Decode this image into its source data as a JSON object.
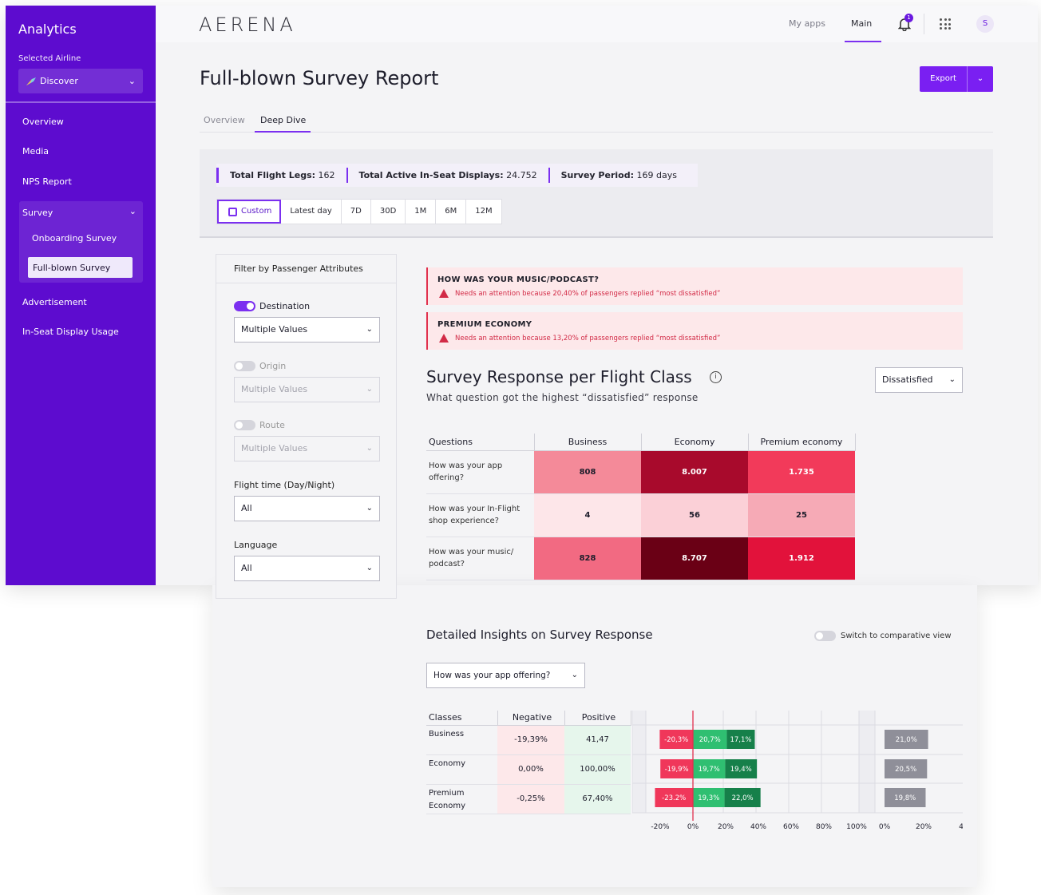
{
  "sidebar": {
    "title": "Analytics",
    "selected_label": "Selected Airline",
    "airline": "Discover",
    "items": [
      "Overview",
      "Media",
      "NPS Report"
    ],
    "survey": "Survey",
    "survey_sub": [
      "Onboarding Survey",
      "Full-blown Survey"
    ],
    "items_after": [
      "Advertisement",
      "In-Seat Display Usage"
    ]
  },
  "topbar": {
    "logo": "AERENA",
    "my_apps": "My apps",
    "main": "Main",
    "notif_count": "1",
    "avatar": "S"
  },
  "page": {
    "title": "Full-blown Survey Report",
    "export": "Export",
    "tabs": [
      "Overview",
      "Deep Dive"
    ]
  },
  "stats": [
    {
      "label": "Total Flight Legs:",
      "value": "162"
    },
    {
      "label": "Total Active In-Seat Displays:",
      "value": "24.752"
    },
    {
      "label": "Survey Period:",
      "value": "169 days"
    }
  ],
  "ranges": [
    "Custom",
    "Latest day",
    "7D",
    "30D",
    "1M",
    "6M",
    "12M"
  ],
  "filter": {
    "title": "Filter by Passenger Attributes",
    "destination": "Destination",
    "destination_value": "Multiple Values",
    "origin": "Origin",
    "origin_value": "Multiple Values",
    "route": "Route",
    "route_value": "Multiple Values",
    "flight_time": "Flight time (Day/Night)",
    "flight_time_value": "All",
    "language": "Language",
    "language_value": "All"
  },
  "alerts": [
    {
      "title": "HOW WAS YOUR MUSIC/PODCAST?",
      "message": "Needs an attention because 20,40% of passengers replied “most dissatisfied”"
    },
    {
      "title": "PREMIUM ECONOMY",
      "message": "Needs an attention because 13,20% of passengers replied “most dissatisfied”"
    }
  ],
  "section": {
    "title": "Survey Response per Flight Class",
    "subtitle": "What question got the highest “dissatisfied” response",
    "dropdown": "Dissatisfied"
  },
  "heatmap": {
    "headers": [
      "Questions",
      "Business",
      "Economy",
      "Premium economy"
    ],
    "rows": [
      {
        "q1": "How was your app",
        "q2": "offering?",
        "values": [
          "808",
          "8.007",
          "1.735"
        ],
        "colors": [
          "#f48a99",
          "#a80a2c",
          "#f23a5a"
        ]
      },
      {
        "q1": "How was your In-Flight",
        "q2": "shop experience?",
        "values": [
          "4",
          "56",
          "25"
        ],
        "colors": [
          "#fde6e9",
          "#fbd0d7",
          "#f6aab6"
        ]
      },
      {
        "q1": "How was your music/",
        "q2": "podcast?",
        "values": [
          "828",
          "8.707",
          "1.912"
        ],
        "colors": [
          "#f26a82",
          "#6a0015",
          "#e2123b"
        ]
      }
    ]
  },
  "insights": {
    "title": "Detailed Insights on Survey Response",
    "comparative": "Switch to comparative view",
    "question": "How was your app offering?",
    "headers": [
      "Classes",
      "Negative",
      "Positive"
    ],
    "rows": [
      {
        "class1": "Business",
        "class2": "",
        "negative": "-19,39%",
        "positive": "41,47"
      },
      {
        "class1": "Economy",
        "class2": "",
        "negative": "0,00%",
        "positive": "100,00%"
      },
      {
        "class1": "Premium",
        "class2": "Economy",
        "negative": "-0,25%",
        "positive": "67,40%"
      }
    ]
  },
  "chart_data": {
    "type": "bar",
    "categories": [
      "Business",
      "Economy",
      "Premium Economy"
    ],
    "series": [
      {
        "values": [
          -20.3,
          -19.9,
          -23.2
        ],
        "labels": [
          "-20,3%",
          "-19,9%",
          "-23.2%"
        ],
        "color": "#f0375a"
      },
      {
        "values": [
          20.7,
          19.7,
          19.3
        ],
        "labels": [
          "20,7%",
          "19,7%",
          "19,3%"
        ],
        "color": "#2fbf71"
      },
      {
        "values": [
          17.1,
          19.4,
          22.0
        ],
        "labels": [
          "17,1%",
          "19,4%",
          "22,0%"
        ],
        "color": "#16804a"
      },
      {
        "values": [
          21.0,
          20.5,
          19.8
        ],
        "labels": [
          "21,0%",
          "20,5%",
          "19,8%"
        ],
        "color": "#8f8f99"
      }
    ],
    "xticks_main": [
      "-20%",
      "0%",
      "20%",
      "40%",
      "60%",
      "80%",
      "100%"
    ],
    "xticks_side": [
      "0%",
      "20%",
      "4"
    ],
    "xlim": [
      -20,
      100
    ]
  }
}
